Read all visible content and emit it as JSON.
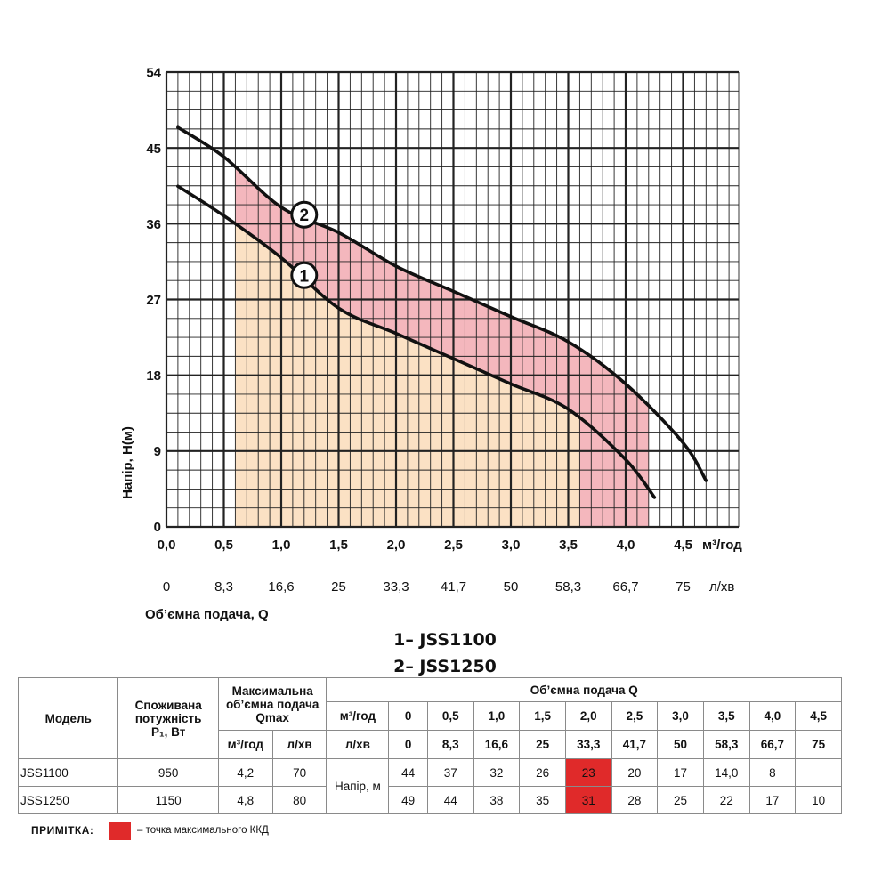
{
  "chart_data": {
    "type": "line",
    "xlabel": "Об’ємна подача, Q",
    "ylabel": "Напір, Н(м)",
    "x_unit": "м³/год",
    "x2_unit": "л/хв",
    "xlim": [
      0,
      5
    ],
    "ylim": [
      0,
      54
    ],
    "x_ticks": [
      "0,0",
      "0,5",
      "1,0",
      "1,5",
      "2,0",
      "2,5",
      "3,0",
      "3,5",
      "4,0",
      "4,5"
    ],
    "x2_ticks": [
      "0",
      "8,3",
      "16,6",
      "25",
      "33,3",
      "41,7",
      "50",
      "58,3",
      "66,7",
      "75"
    ],
    "y_ticks": [
      0,
      9,
      18,
      27,
      36,
      45,
      54
    ],
    "grid": true,
    "series": [
      {
        "name": "1",
        "x": [
          0.1,
          0.5,
          1.0,
          1.5,
          2.0,
          2.5,
          3.0,
          3.5,
          4.0,
          4.25
        ],
        "y": [
          40.5,
          37,
          32,
          26,
          23,
          20,
          17,
          14.0,
          8,
          3.5
        ]
      },
      {
        "name": "2",
        "x": [
          0.1,
          0.5,
          1.0,
          1.5,
          2.0,
          2.5,
          3.0,
          3.5,
          4.0,
          4.5,
          4.7
        ],
        "y": [
          47.5,
          44,
          38,
          35,
          31,
          28,
          25,
          22,
          17,
          10,
          5.5
        ]
      }
    ],
    "ranges": [
      {
        "series": "1",
        "x": [
          0.6,
          3.6
        ],
        "color": "#fbe1c4"
      },
      {
        "series": "2",
        "x": [
          0.6,
          4.2
        ],
        "color": "#f4b7bd"
      }
    ],
    "colors": {
      "line": "#111111",
      "grid": "#222222",
      "range1": "#fbe1c4",
      "range2": "#f4b7bd",
      "max_efficiency": "#e02a2a"
    }
  },
  "legend": {
    "line1": "1– JSS1100",
    "line2": "2– JSS1250"
  },
  "table": {
    "headers": {
      "model": "Модель",
      "power": [
        "Споживана",
        "потужність",
        "P₁, Вт"
      ],
      "qmax": [
        "Максимальна",
        "об’ємна подача",
        "Qmax"
      ],
      "qmax_m3": "м³/год",
      "qmax_lmin": "л/хв",
      "flow": "Об’ємна подача Q",
      "unit_m3": "м³/год",
      "unit_lmin": "л/хв",
      "head": "Напір, м"
    },
    "flow_m3": [
      "0",
      "0,5",
      "1,0",
      "1,5",
      "2,0",
      "2,5",
      "3,0",
      "3,5",
      "4,0",
      "4,5"
    ],
    "flow_lmin": [
      "0",
      "8,3",
      "16,6",
      "25",
      "33,3",
      "41,7",
      "50",
      "58,3",
      "66,7",
      "75"
    ],
    "rows": [
      {
        "model": "JSS1100",
        "power": "950",
        "qmax_m3": "4,2",
        "qmax_lmin": "70",
        "heads": [
          "44",
          "37",
          "32",
          "26",
          "23",
          "20",
          "17",
          "14,0",
          "8",
          ""
        ]
      },
      {
        "model": "JSS1250",
        "power": "1150",
        "qmax_m3": "4,8",
        "qmax_lmin": "80",
        "heads": [
          "49",
          "44",
          "38",
          "35",
          "31",
          "28",
          "25",
          "22",
          "17",
          "10"
        ]
      }
    ],
    "max_efficiency_index": 4
  },
  "note": {
    "label": "ПРИМІТКА:",
    "text": "– точка максимального ККД"
  }
}
